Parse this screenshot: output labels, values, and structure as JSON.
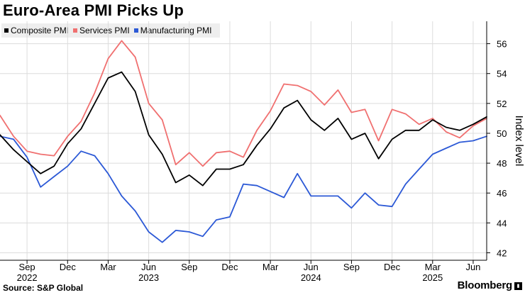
{
  "title": "Euro-Area PMI Picks Up",
  "source": "Source: S&P Global",
  "brand": "Bloomberg",
  "chart_data": {
    "type": "line",
    "title": "Euro-Area PMI Picks Up",
    "ylabel": "Index level",
    "ylim": [
      41.5,
      57.5
    ],
    "yticks": [
      42,
      44,
      46,
      48,
      50,
      52,
      54,
      56
    ],
    "grid": true,
    "legend": "top-left",
    "x_start": "2022-07",
    "x_end": "2025-07",
    "month_ticks": [
      {
        "label": "Sep",
        "date": "2022-09"
      },
      {
        "label": "Dec",
        "date": "2022-12"
      },
      {
        "label": "Mar",
        "date": "2023-03"
      },
      {
        "label": "Jun",
        "date": "2023-06"
      },
      {
        "label": "Sep",
        "date": "2023-09"
      },
      {
        "label": "Dec",
        "date": "2023-12"
      },
      {
        "label": "Mar",
        "date": "2024-03"
      },
      {
        "label": "Jun",
        "date": "2024-06"
      },
      {
        "label": "Sep",
        "date": "2024-09"
      },
      {
        "label": "Dec",
        "date": "2024-12"
      },
      {
        "label": "Mar",
        "date": "2025-03"
      },
      {
        "label": "Jun",
        "date": "2025-06"
      }
    ],
    "year_labels": [
      {
        "label": "2022",
        "date": "2022-09"
      },
      {
        "label": "2023",
        "date": "2023-06"
      },
      {
        "label": "2024",
        "date": "2024-06"
      },
      {
        "label": "2025",
        "date": "2025-03"
      }
    ],
    "x": [
      "2022-07",
      "2022-08",
      "2022-09",
      "2022-10",
      "2022-11",
      "2022-12",
      "2023-01",
      "2023-02",
      "2023-03",
      "2023-04",
      "2023-05",
      "2023-06",
      "2023-07",
      "2023-08",
      "2023-09",
      "2023-10",
      "2023-11",
      "2023-12",
      "2024-01",
      "2024-02",
      "2024-03",
      "2024-04",
      "2024-05",
      "2024-06",
      "2024-07",
      "2024-08",
      "2024-09",
      "2024-10",
      "2024-11",
      "2024-12",
      "2025-01",
      "2025-02",
      "2025-03",
      "2025-04",
      "2025-05",
      "2025-06",
      "2025-07"
    ],
    "series": [
      {
        "name": "Composite PMI",
        "color": "#000000",
        "values": [
          49.9,
          48.9,
          48.1,
          47.3,
          47.8,
          49.3,
          50.3,
          52.0,
          53.7,
          54.1,
          52.8,
          49.9,
          48.6,
          46.7,
          47.2,
          46.5,
          47.6,
          47.6,
          47.9,
          49.2,
          50.3,
          51.7,
          52.2,
          50.9,
          50.2,
          51.0,
          49.6,
          50.0,
          48.3,
          49.6,
          50.2,
          50.2,
          50.9,
          50.4,
          50.2,
          50.6,
          51.1
        ]
      },
      {
        "name": "Services PMI",
        "color": "#f07070",
        "values": [
          51.2,
          49.8,
          48.8,
          48.6,
          48.5,
          49.8,
          50.8,
          52.7,
          55.0,
          56.2,
          55.1,
          52.0,
          50.9,
          47.9,
          48.7,
          47.8,
          48.7,
          48.8,
          48.4,
          50.2,
          51.5,
          53.3,
          53.2,
          52.8,
          51.9,
          52.9,
          51.4,
          51.6,
          49.5,
          51.6,
          51.3,
          50.6,
          51.0,
          50.1,
          49.7,
          50.5,
          51.0
        ]
      },
      {
        "name": "Manufacturing PMI",
        "color": "#2c59d6",
        "values": [
          49.8,
          49.6,
          48.4,
          46.4,
          47.1,
          47.8,
          48.8,
          48.5,
          47.3,
          45.8,
          44.8,
          43.4,
          42.7,
          43.5,
          43.4,
          43.1,
          44.2,
          44.4,
          46.6,
          46.5,
          46.1,
          45.7,
          47.3,
          45.8,
          45.8,
          45.8,
          45.0,
          46.0,
          45.2,
          45.1,
          46.6,
          47.6,
          48.6,
          49.0,
          49.4,
          49.5,
          49.8
        ]
      }
    ]
  }
}
